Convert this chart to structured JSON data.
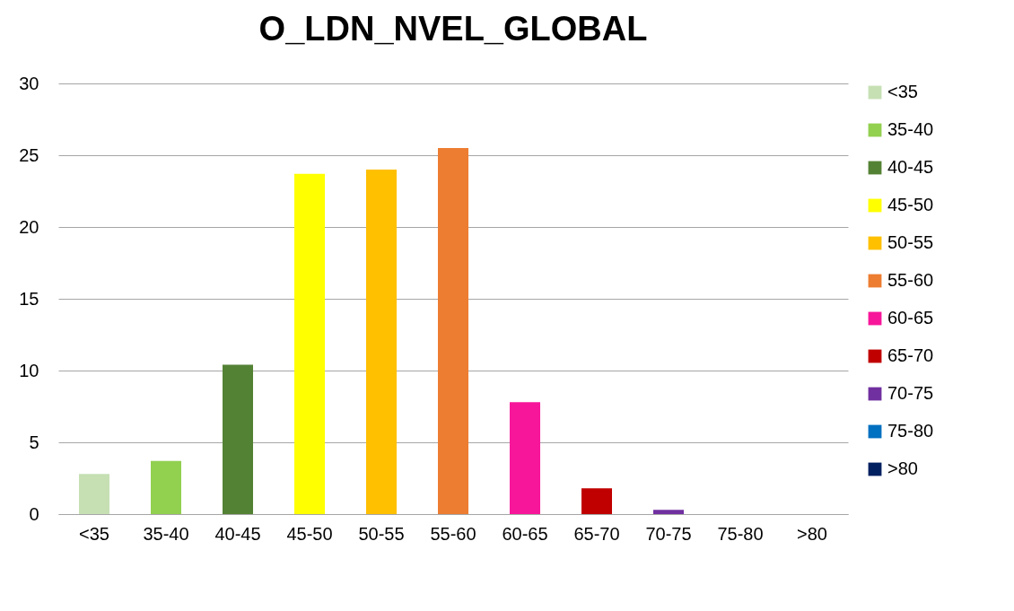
{
  "chart_data": {
    "type": "bar",
    "title": "O_LDN_NVEL_GLOBAL",
    "categories": [
      "<35",
      "35-40",
      "40-45",
      "45-50",
      "50-55",
      "55-60",
      "60-65",
      "65-70",
      "70-75",
      "75-80",
      ">80"
    ],
    "series": [
      {
        "name": "<35",
        "color": "#c6e0b4",
        "values": [
          2.8,
          null,
          null,
          null,
          null,
          null,
          null,
          null,
          null,
          null,
          null
        ]
      },
      {
        "name": "35-40",
        "color": "#92d050",
        "values": [
          null,
          3.7,
          null,
          null,
          null,
          null,
          null,
          null,
          null,
          null,
          null
        ]
      },
      {
        "name": "40-45",
        "color": "#548235",
        "values": [
          null,
          null,
          10.4,
          null,
          null,
          null,
          null,
          null,
          null,
          null,
          null
        ]
      },
      {
        "name": "45-50",
        "color": "#ffff00",
        "values": [
          null,
          null,
          null,
          23.7,
          null,
          null,
          null,
          null,
          null,
          null,
          null
        ]
      },
      {
        "name": "50-55",
        "color": "#ffc000",
        "values": [
          null,
          null,
          null,
          null,
          24.0,
          null,
          null,
          null,
          null,
          null,
          null
        ]
      },
      {
        "name": "55-60",
        "color": "#ed7d31",
        "values": [
          null,
          null,
          null,
          null,
          null,
          25.5,
          null,
          null,
          null,
          null,
          null
        ]
      },
      {
        "name": "60-65",
        "color": "#f7169a",
        "values": [
          null,
          null,
          null,
          null,
          null,
          null,
          7.8,
          null,
          null,
          null,
          null
        ]
      },
      {
        "name": "65-70",
        "color": "#c00000",
        "values": [
          null,
          null,
          null,
          null,
          null,
          null,
          null,
          1.8,
          null,
          null,
          null
        ]
      },
      {
        "name": "70-75",
        "color": "#7030a0",
        "values": [
          null,
          null,
          null,
          null,
          null,
          null,
          null,
          null,
          0.3,
          null,
          null
        ]
      },
      {
        "name": "75-80",
        "color": "#0070c0",
        "values": [
          null,
          null,
          null,
          null,
          null,
          null,
          null,
          null,
          null,
          0,
          null
        ]
      },
      {
        "name": ">80",
        "color": "#002060",
        "values": [
          null,
          null,
          null,
          null,
          null,
          null,
          null,
          null,
          null,
          null,
          0
        ]
      }
    ],
    "ylim": [
      0,
      30
    ],
    "yticks": [
      0,
      5,
      10,
      15,
      20,
      25,
      30
    ],
    "grid": "y",
    "legend": "right"
  }
}
